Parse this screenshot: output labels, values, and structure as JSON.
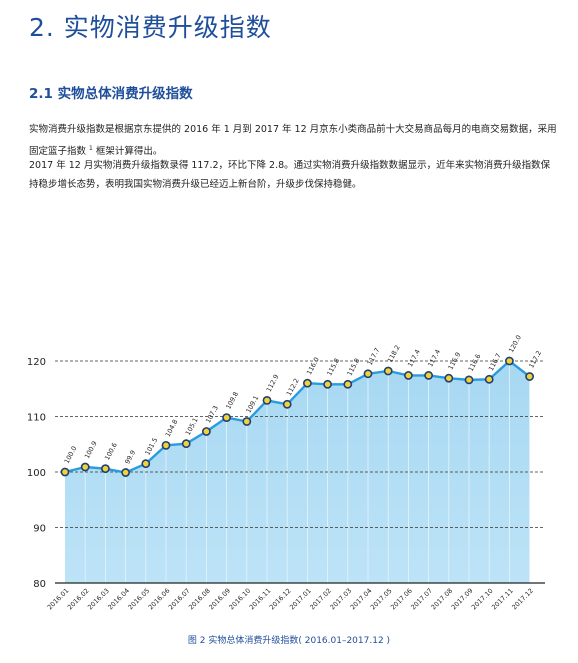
{
  "heading": "2.  实物消费升级指数",
  "subheading": "2.1  实物总体消费升级指数",
  "paragraph1_a": "实物消费升级指数是根据京东提供的 2016 年 1 月到 2017 年 12 月京东小类商品前十大交易商品每月的电商交易数据，采用固定篮子指数 ",
  "paragraph1_sup": "1",
  "paragraph1_b": " 框架计算得出。",
  "paragraph2": "2017 年 12 月实物消费升级指数录得 117.2，环比下降 2.8。通过实物消费升级指数数据显示，近年来实物消费升级指数保持稳步增长态势，表明我国实物消费升级已经迈上新台阶，升级步伐保持稳健。",
  "caption": "图 2 实物总体消费升级指数( 2016.01–2017.12 )",
  "chart_data": {
    "type": "area",
    "categories": [
      "2016.01",
      "2016.02",
      "2016.03",
      "2016.04",
      "2016.05",
      "2016.06",
      "2016.07",
      "2016.08",
      "2016.09",
      "2016.10",
      "2016.11",
      "2016.12",
      "2017.01",
      "2017.02",
      "2017.03",
      "2017.04",
      "2017.05",
      "2017.06",
      "2017.07",
      "2017.08",
      "2017.09",
      "2017.10",
      "2017.11",
      "2017.12"
    ],
    "values": [
      100.0,
      100.9,
      100.6,
      99.9,
      101.5,
      104.8,
      105.1,
      107.3,
      109.8,
      109.1,
      112.9,
      112.2,
      116.0,
      115.8,
      115.8,
      117.7,
      118.2,
      117.4,
      117.4,
      116.9,
      116.6,
      116.7,
      120.0,
      117.2
    ],
    "value_labels": [
      "100.0",
      "100.9",
      "100.6",
      "99.9",
      "101.5",
      "104.8",
      "105.1",
      "107.3",
      "109.8",
      "109.1",
      "112.9",
      "112.2",
      "116.0",
      "115.8",
      "115.8",
      "117.7",
      "118.2",
      "117.4",
      "117.4",
      "116.9",
      "116.6",
      "116.7",
      "120.0",
      "117.2"
    ],
    "yticks": [
      80,
      90,
      100,
      110,
      120
    ],
    "ylim": [
      80,
      123
    ],
    "grid": "dashed-horizontal",
    "colors": {
      "line": "#2a9be0",
      "fill_top": "#a7d8f2",
      "fill_bottom": "#bde3f7",
      "marker_fill": "#f2d23a",
      "marker_edge": "#1e3f73"
    }
  }
}
